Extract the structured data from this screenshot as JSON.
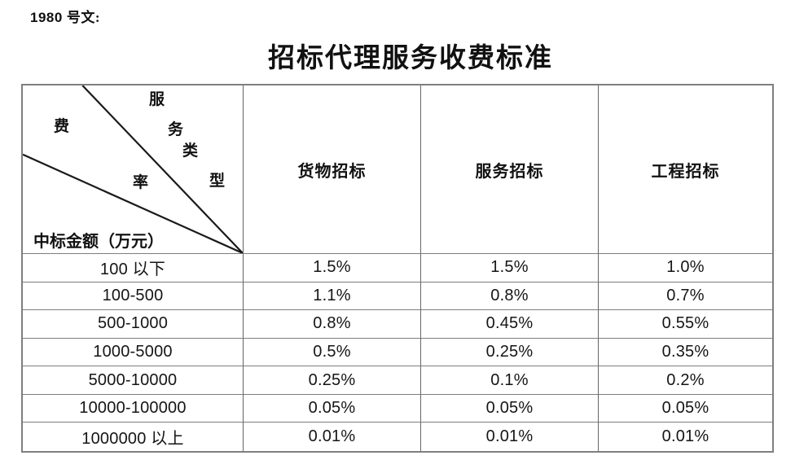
{
  "doc_label": {
    "number": "1980",
    "suffix": "号文:"
  },
  "title": "招标代理服务收费标准",
  "table": {
    "corner": {
      "service_type_chars": [
        "服",
        "务",
        "类",
        "型"
      ],
      "rate_chars": [
        "费",
        "率"
      ],
      "amount_label": "中标金额（万元）"
    },
    "columns": [
      "货物招标",
      "服务招标",
      "工程招标"
    ],
    "rows": [
      {
        "amount": "100 以下",
        "values": [
          "1.5%",
          "1.5%",
          "1.0%"
        ]
      },
      {
        "amount": "100-500",
        "values": [
          "1.1%",
          "0.8%",
          "0.7%"
        ]
      },
      {
        "amount": "500-1000",
        "values": [
          "0.8%",
          "0.45%",
          "0.55%"
        ]
      },
      {
        "amount": "1000-5000",
        "values": [
          "0.5%",
          "0.25%",
          "0.35%"
        ]
      },
      {
        "amount": "5000-10000",
        "values": [
          "0.25%",
          "0.1%",
          "0.2%"
        ]
      },
      {
        "amount": "10000-100000",
        "values": [
          "0.05%",
          "0.05%",
          "0.05%"
        ]
      },
      {
        "amount": "1000000 以上",
        "values": [
          "0.01%",
          "0.01%",
          "0.01%"
        ]
      }
    ]
  },
  "colors": {
    "text": "#111111",
    "table_border_outer": "#7f7f7f",
    "table_border_inner": "#6e6e6e",
    "diagonal_line": "#1a1a1a"
  }
}
